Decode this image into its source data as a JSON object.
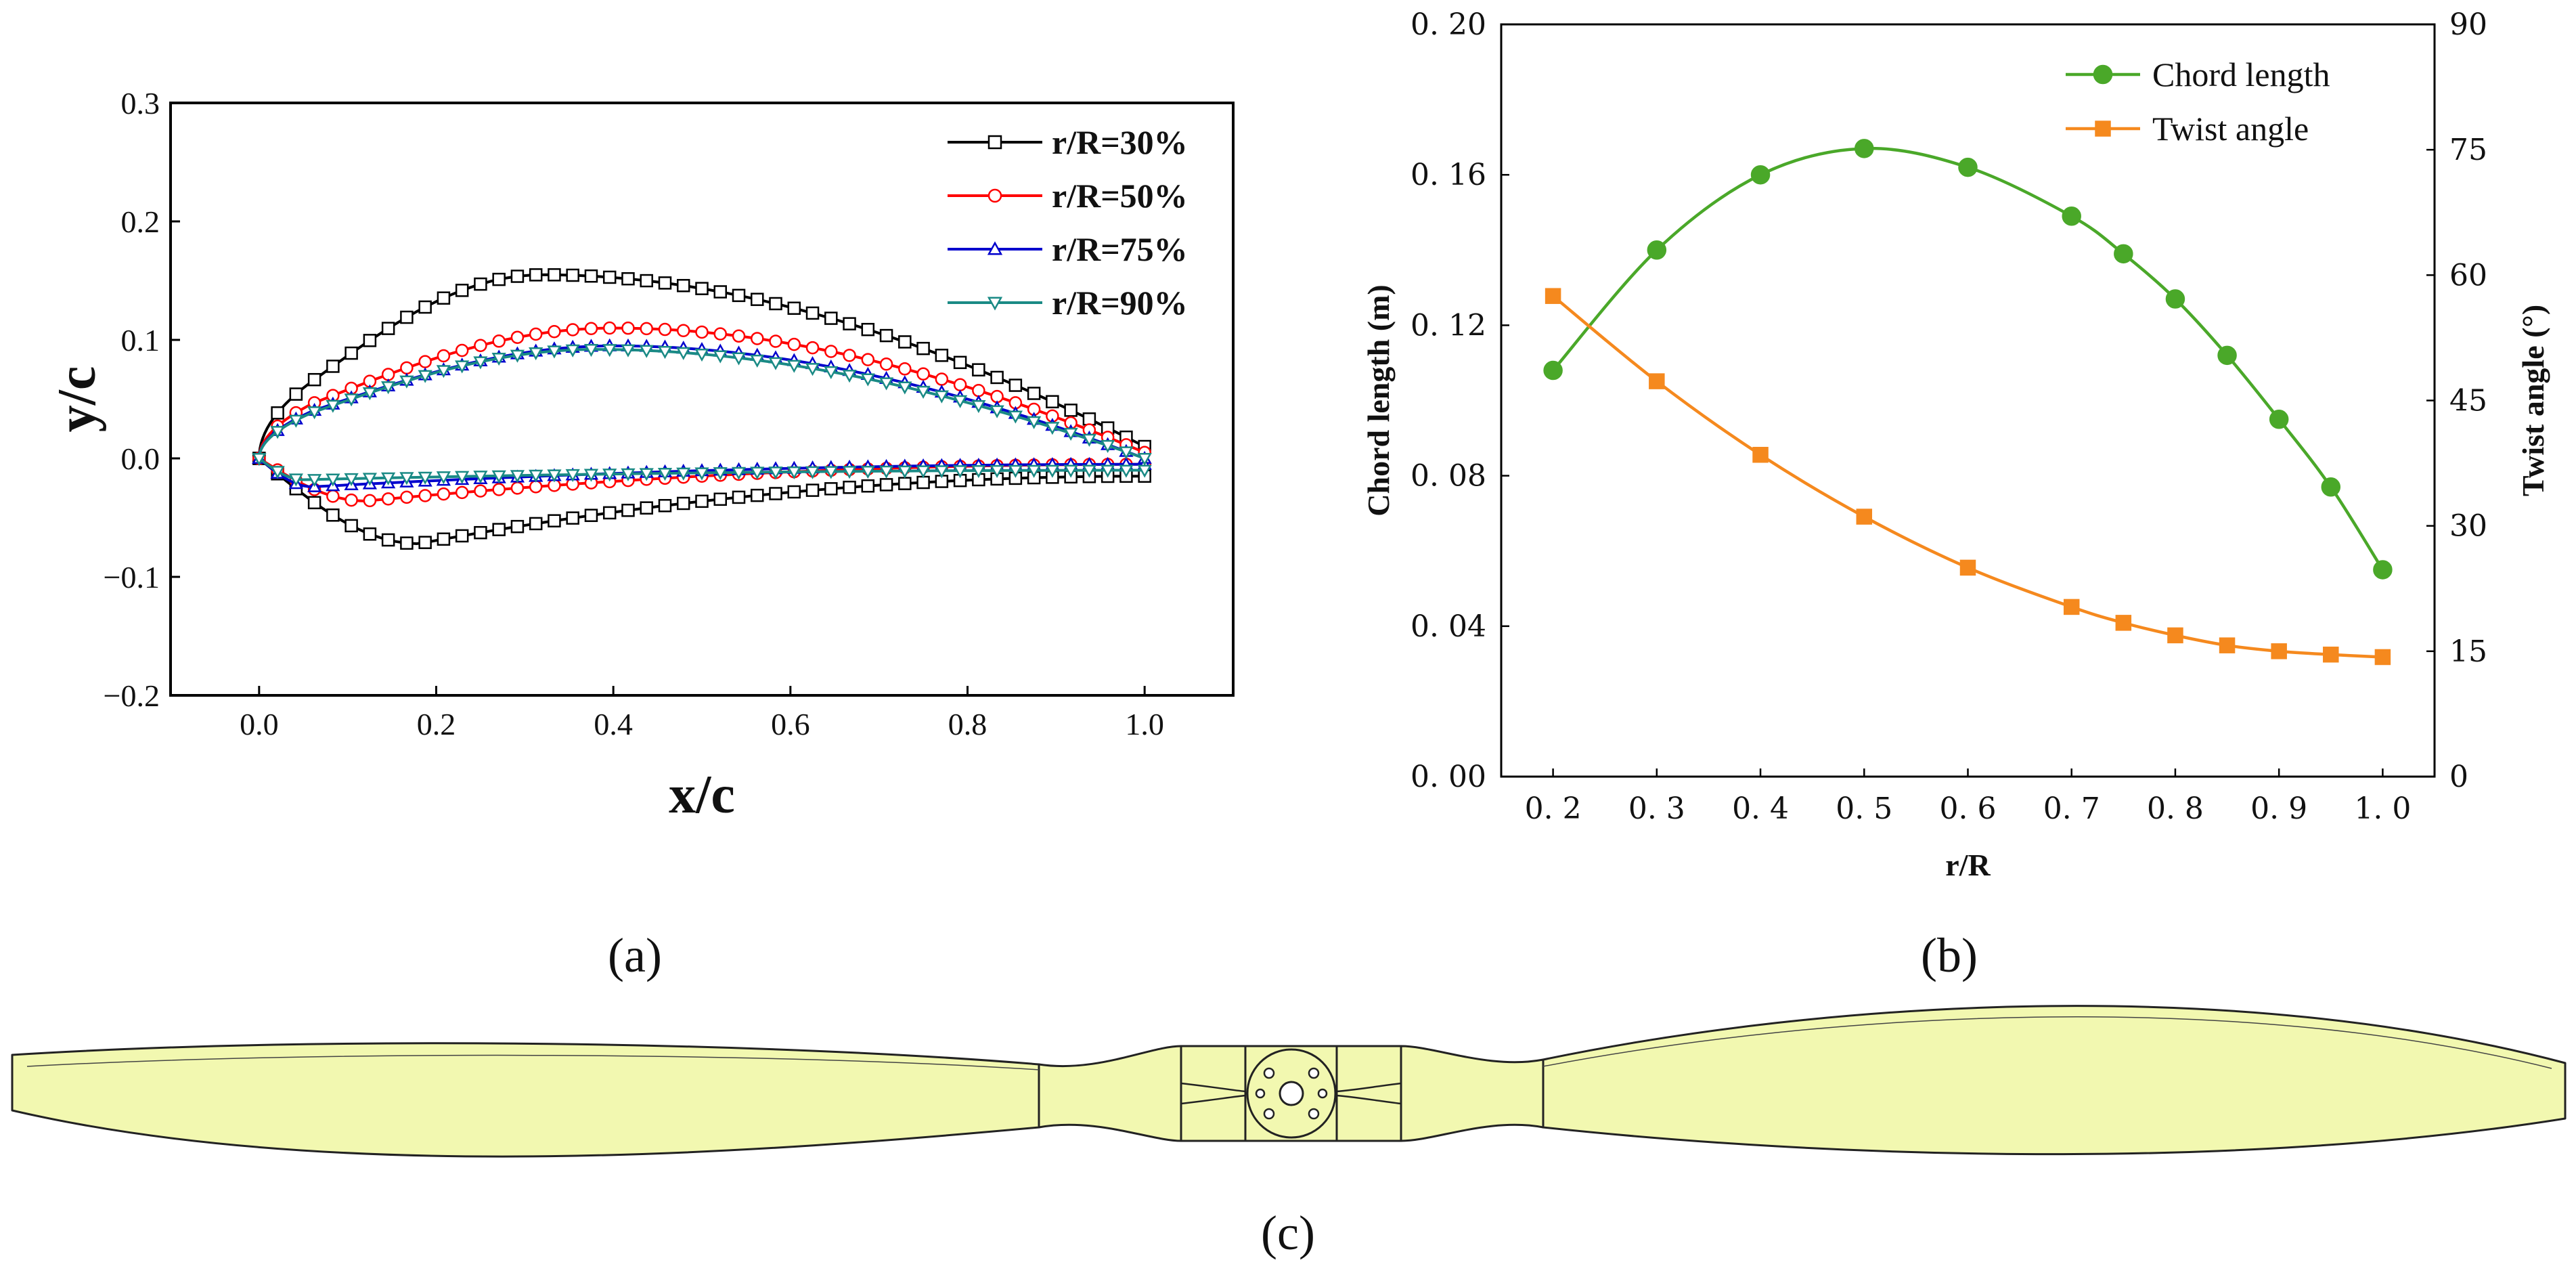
{
  "chart_data": [
    {
      "id": "a",
      "type": "line",
      "title": "",
      "xlabel": "x/c",
      "ylabel": "y/c",
      "xlim": [
        -0.1,
        1.1
      ],
      "ylim": [
        -0.2,
        0.3
      ],
      "xticks": [
        0.0,
        0.2,
        0.4,
        0.6,
        0.8,
        1.0
      ],
      "xtick_labels": [
        "0.0",
        "0.2",
        "0.4",
        "0.6",
        "0.8",
        "1.0"
      ],
      "yticks": [
        -0.2,
        -0.1,
        0.0,
        0.1,
        0.2,
        0.3
      ],
      "ytick_labels": [
        "−0.2",
        "−0.1",
        "0.0",
        "0.1",
        "0.2",
        "0.3"
      ],
      "legend_position": "top-right",
      "series": [
        {
          "name": "r/R=30%",
          "color": "#000000",
          "marker": "square",
          "upper_max": 0.155,
          "upper_max_x": 0.32,
          "lower_min": -0.072,
          "lower_min_x": 0.18,
          "le_upper_x": 0.003,
          "te_upper": 0.01,
          "te_lower": -0.015
        },
        {
          "name": "r/R=50%",
          "color": "#ff0000",
          "marker": "circle",
          "upper_max": 0.11,
          "upper_max_x": 0.4,
          "lower_min": -0.036,
          "lower_min_x": 0.12,
          "le_upper_x": 0.002,
          "te_upper": 0.005,
          "te_lower": -0.005
        },
        {
          "name": "r/R=75%",
          "color": "#0000cd",
          "marker": "triangle-up",
          "upper_max": 0.095,
          "upper_max_x": 0.4,
          "lower_min": -0.024,
          "lower_min_x": 0.06,
          "le_upper_x": 0.002,
          "te_upper": 0.0,
          "te_lower": -0.005
        },
        {
          "name": "r/R=90%",
          "color": "#1a8a85",
          "marker": "triangle-down",
          "upper_max": 0.092,
          "upper_max_x": 0.38,
          "lower_min": -0.018,
          "lower_min_x": 0.05,
          "le_upper_x": 0.002,
          "te_upper": 0.0,
          "te_lower": -0.01
        }
      ]
    },
    {
      "id": "b",
      "type": "line",
      "title": "",
      "xlabel": "r/R",
      "ylabel": "Chord length (m)",
      "y2label": "Twist angle (°)",
      "xlim": [
        0.15,
        1.05
      ],
      "ylim": [
        0.0,
        0.2
      ],
      "y2lim": [
        0,
        90
      ],
      "xticks": [
        0.2,
        0.3,
        0.4,
        0.5,
        0.6,
        0.7,
        0.8,
        0.9,
        1.0
      ],
      "xtick_labels": [
        "0. 2",
        "0. 3",
        "0. 4",
        "0. 5",
        "0. 6",
        "0. 7",
        "0. 8",
        "0. 9",
        "1. 0"
      ],
      "yticks": [
        0.0,
        0.04,
        0.08,
        0.12,
        0.16,
        0.2
      ],
      "ytick_labels": [
        "0. 00",
        "0. 04",
        "0. 08",
        "0. 12",
        "0. 16",
        "0. 20"
      ],
      "y2ticks": [
        0,
        15,
        30,
        45,
        60,
        75,
        90
      ],
      "y2tick_labels": [
        "0",
        "15",
        "30",
        "45",
        "60",
        "75",
        "90"
      ],
      "legend_position": "top-right",
      "x": [
        0.2,
        0.3,
        0.4,
        0.5,
        0.6,
        0.7,
        0.75,
        0.8,
        0.85,
        0.9,
        0.95,
        1.0
      ],
      "series": [
        {
          "name": "Chord length",
          "axis": "left",
          "color": "#4aa829",
          "marker": "circle",
          "values": [
            0.108,
            0.14,
            0.16,
            0.167,
            0.162,
            0.149,
            0.139,
            0.127,
            0.112,
            0.095,
            0.077,
            0.055
          ]
        },
        {
          "name": "Twist angle",
          "axis": "right",
          "color": "#f5891e",
          "marker": "square",
          "values": [
            57.5,
            47.3,
            38.5,
            31.1,
            25.0,
            20.3,
            18.4,
            16.9,
            15.7,
            15.0,
            14.6,
            14.3
          ]
        }
      ]
    }
  ],
  "panels": {
    "a": "(a)",
    "b": "(b)",
    "c": "(c)"
  },
  "colors": {
    "blade_fill": "#f2f8b0",
    "blade_stroke": "#222222"
  }
}
